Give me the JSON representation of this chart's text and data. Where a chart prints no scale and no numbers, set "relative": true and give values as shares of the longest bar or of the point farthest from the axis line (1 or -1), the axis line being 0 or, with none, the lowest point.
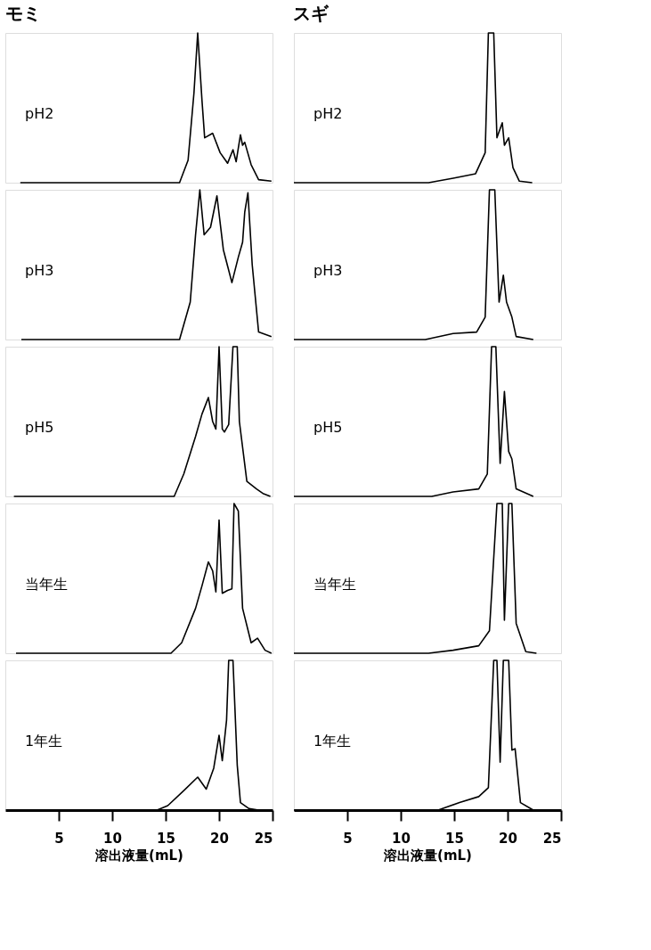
{
  "chart_data": [
    {
      "type": "line",
      "title": "モミ",
      "relative": true,
      "xlim": [
        0,
        25
      ],
      "tick_labels": false,
      "series": [
        {
          "name": "pH2",
          "color": "#000000",
          "x": [
            1.4,
            16.3,
            17.1,
            17.65,
            18.0,
            18.4,
            18.65,
            19.4,
            20.1,
            20.8,
            21.3,
            21.6,
            22.0,
            22.2,
            22.4,
            23.0,
            23.7,
            24.9
          ],
          "values": [
            0,
            0,
            0.15,
            0.6,
            1.0,
            0.55,
            0.3,
            0.33,
            0.2,
            0.13,
            0.22,
            0.14,
            0.32,
            0.25,
            0.27,
            0.12,
            0.02,
            0.01
          ]
        }
      ]
    },
    {
      "type": "line",
      "relative": true,
      "xlim": [
        0,
        25
      ],
      "tick_labels": false,
      "series": [
        {
          "name": "pH3",
          "color": "#000000",
          "x": [
            1.5,
            16.3,
            17.3,
            17.8,
            18.2,
            18.6,
            19.2,
            19.8,
            20.4,
            21.2,
            21.8,
            22.2,
            22.4,
            22.7,
            23.1,
            23.7,
            24.9
          ],
          "values": [
            0,
            0,
            0.25,
            0.7,
            1.0,
            0.7,
            0.75,
            0.96,
            0.6,
            0.38,
            0.55,
            0.65,
            0.85,
            0.98,
            0.5,
            0.05,
            0.02
          ]
        }
      ]
    },
    {
      "type": "line",
      "relative": true,
      "xlim": [
        0,
        25
      ],
      "tick_labels": false,
      "series": [
        {
          "name": "pH5",
          "color": "#000000",
          "x": [
            0.8,
            15.8,
            16.7,
            17.8,
            18.4,
            19.0,
            19.4,
            19.7,
            20.0,
            20.3,
            20.5,
            20.9,
            21.3,
            21.7,
            21.9,
            22.6,
            23.5,
            24.1,
            24.8
          ],
          "values": [
            0,
            0,
            0.15,
            0.4,
            0.55,
            0.66,
            0.5,
            0.45,
            1.0,
            0.45,
            0.43,
            0.48,
            1.0,
            1.0,
            0.5,
            0.1,
            0.05,
            0.02,
            0
          ]
        }
      ]
    },
    {
      "type": "line",
      "relative": true,
      "xlim": [
        0,
        25
      ],
      "tick_labels": false,
      "series": [
        {
          "name": "当年生",
          "color": "#000000",
          "x": [
            1.0,
            15.5,
            16.5,
            17.8,
            18.4,
            19.0,
            19.4,
            19.7,
            20.0,
            20.3,
            20.8,
            21.2,
            21.4,
            21.8,
            22.2,
            23.0,
            23.6,
            24.3,
            24.9
          ],
          "values": [
            0,
            0,
            0.07,
            0.3,
            0.45,
            0.61,
            0.55,
            0.41,
            0.89,
            0.4,
            0.42,
            0.43,
            1.0,
            0.95,
            0.3,
            0.07,
            0.1,
            0.02,
            0
          ]
        }
      ]
    },
    {
      "type": "line",
      "relative": true,
      "xlim": [
        0,
        25
      ],
      "xticks": [
        5,
        10,
        15,
        20,
        25
      ],
      "xlabel": "溶出液量(mL)",
      "tick_labels": "x",
      "series": [
        {
          "name": "1年生",
          "color": "#000000",
          "x": [
            0.1,
            14.2,
            15.2,
            16.7,
            18.0,
            18.8,
            19.5,
            20.0,
            20.3,
            20.7,
            20.9,
            21.3,
            21.7,
            22.0,
            22.8,
            23.7
          ],
          "values": [
            0,
            0,
            0.03,
            0.13,
            0.22,
            0.14,
            0.28,
            0.5,
            0.33,
            0.6,
            1.0,
            1.0,
            0.3,
            0.05,
            0.01,
            0
          ]
        }
      ]
    },
    {
      "type": "line",
      "title": "スギ",
      "relative": true,
      "xlim": [
        0,
        25
      ],
      "tick_labels": false,
      "series": [
        {
          "name": "pH2",
          "color": "#000000",
          "x": [
            0,
            12.6,
            14.9,
            17.0,
            17.9,
            18.2,
            18.7,
            19.0,
            19.5,
            19.7,
            20.1,
            20.5,
            21.1,
            22.3
          ],
          "values": [
            0,
            0,
            0.03,
            0.06,
            0.2,
            1.0,
            1.0,
            0.3,
            0.4,
            0.25,
            0.3,
            0.1,
            0.01,
            0
          ]
        }
      ]
    },
    {
      "type": "line",
      "relative": true,
      "xlim": [
        0,
        25
      ],
      "tick_labels": false,
      "series": [
        {
          "name": "pH3",
          "color": "#000000",
          "x": [
            0,
            12.3,
            14.9,
            17.1,
            17.9,
            18.3,
            18.8,
            19.2,
            19.6,
            19.9,
            20.4,
            20.8,
            22.4
          ],
          "values": [
            0,
            0,
            0.04,
            0.05,
            0.15,
            1.0,
            1.0,
            0.25,
            0.43,
            0.25,
            0.15,
            0.02,
            0
          ]
        }
      ]
    },
    {
      "type": "line",
      "relative": true,
      "xlim": [
        0,
        25
      ],
      "tick_labels": false,
      "series": [
        {
          "name": "pH5",
          "color": "#000000",
          "x": [
            0,
            12.9,
            14.9,
            17.3,
            18.1,
            18.5,
            18.9,
            19.3,
            19.7,
            20.1,
            20.4,
            20.8,
            22.4
          ],
          "values": [
            0,
            0,
            0.03,
            0.05,
            0.15,
            1.0,
            1.0,
            0.22,
            0.7,
            0.3,
            0.25,
            0.05,
            0
          ]
        }
      ]
    },
    {
      "type": "line",
      "relative": true,
      "xlim": [
        0,
        25
      ],
      "tick_labels": false,
      "series": [
        {
          "name": "当年生",
          "color": "#000000",
          "x": [
            0,
            12.6,
            14.9,
            17.3,
            18.3,
            19.0,
            19.5,
            19.7,
            20.1,
            20.4,
            20.8,
            21.7,
            22.7
          ],
          "values": [
            0,
            0,
            0.02,
            0.05,
            0.15,
            1.0,
            1.0,
            0.22,
            1.0,
            1.0,
            0.2,
            0.01,
            0
          ]
        }
      ]
    },
    {
      "type": "line",
      "relative": true,
      "xlim": [
        0,
        25
      ],
      "xticks": [
        5,
        10,
        15,
        20,
        25
      ],
      "xlabel": "溶出液量(mL)",
      "tick_labels": "x",
      "series": [
        {
          "name": "1年生",
          "color": "#000000",
          "x": [
            0,
            13.5,
            15.5,
            17.3,
            18.2,
            18.7,
            19.0,
            19.3,
            19.6,
            20.1,
            20.4,
            20.7,
            21.2,
            22.4
          ],
          "values": [
            0,
            0,
            0.05,
            0.09,
            0.15,
            1.0,
            1.0,
            0.32,
            1.0,
            1.0,
            0.4,
            0.41,
            0.05,
            0
          ]
        }
      ]
    }
  ]
}
